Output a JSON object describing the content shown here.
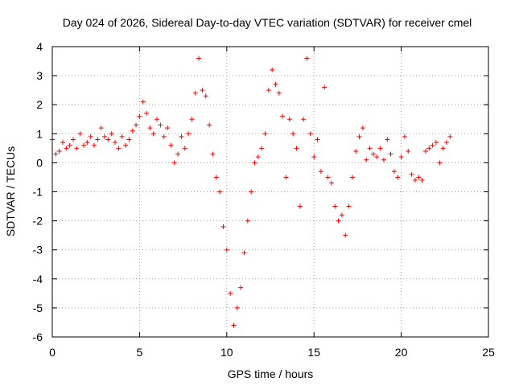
{
  "chart_data": {
    "type": "scatter",
    "title": "Day 024 of 2026, Sidereal Day-to-day VTEC variation (SDTVAR) for receiver cmel",
    "xlabel": "GPS time / hours",
    "ylabel": "SDTVAR / TECUs",
    "xlim": [
      0,
      25
    ],
    "ylim": [
      -6,
      4
    ],
    "xticks": [
      "0",
      "5",
      "10",
      "15",
      "20",
      "25"
    ],
    "yticks": [
      "-6",
      "-5",
      "-4",
      "-3",
      "-2",
      "-1",
      "0",
      "1",
      "2",
      "3",
      "4"
    ],
    "grid": true,
    "marker": "+",
    "color": "#ff0000",
    "series": [
      {
        "name": "SDTVAR",
        "x": [
          0,
          0.2,
          0.4,
          0.6,
          0.8,
          1.0,
          1.2,
          1.4,
          1.6,
          1.8,
          2.0,
          2.2,
          2.4,
          2.6,
          2.8,
          3.0,
          3.2,
          3.4,
          3.6,
          3.8,
          4.0,
          4.2,
          4.4,
          4.6,
          4.8,
          5.0,
          5.2,
          5.4,
          5.6,
          5.8,
          6.0,
          6.2,
          6.4,
          6.6,
          6.8,
          7.0,
          7.2,
          7.4,
          7.6,
          7.8,
          8.0,
          8.2,
          8.4,
          8.6,
          8.8,
          9.0,
          9.2,
          9.4,
          9.6,
          9.8,
          10.0,
          10.2,
          10.4,
          10.6,
          10.8,
          11.0,
          11.2,
          11.4,
          11.6,
          11.8,
          12.0,
          12.2,
          12.4,
          12.6,
          12.8,
          13.0,
          13.2,
          13.4,
          13.6,
          13.8,
          14.0,
          14.2,
          14.4,
          14.6,
          14.8,
          15.0,
          15.2,
          15.4,
          15.6,
          15.8,
          16.0,
          16.2,
          16.4,
          16.6,
          16.8,
          17.0,
          17.2,
          17.4,
          17.6,
          17.8,
          18.0,
          18.2,
          18.4,
          18.6,
          18.8,
          19.0,
          19.2,
          19.4,
          19.6,
          19.8,
          20.0,
          20.2,
          20.4,
          20.6,
          20.8,
          21.0,
          21.2,
          21.4,
          21.6,
          21.8,
          22.0,
          22.2,
          22.4,
          22.6,
          22.8
        ],
        "y": [
          0.8,
          0.3,
          0.4,
          0.7,
          0.5,
          0.6,
          0.8,
          0.5,
          1.0,
          0.6,
          0.7,
          0.9,
          0.6,
          0.8,
          1.2,
          0.9,
          0.8,
          1.0,
          0.7,
          0.5,
          0.9,
          0.6,
          0.8,
          1.1,
          1.3,
          1.6,
          2.1,
          1.7,
          1.2,
          1.0,
          1.5,
          1.3,
          0.9,
          1.2,
          0.6,
          0.0,
          0.3,
          0.9,
          0.5,
          1.0,
          1.5,
          2.4,
          3.6,
          2.5,
          2.3,
          1.3,
          0.3,
          -0.5,
          -1.0,
          -2.2,
          -3.0,
          -4.5,
          -5.6,
          -5.0,
          -4.3,
          -3.1,
          -2.0,
          -1.0,
          0.0,
          0.2,
          0.5,
          1.0,
          2.5,
          3.2,
          2.7,
          2.4,
          1.6,
          -0.5,
          1.5,
          1.0,
          0.5,
          -1.5,
          1.5,
          3.6,
          1.0,
          0.2,
          0.8,
          -0.3,
          2.6,
          -0.5,
          -0.7,
          -1.5,
          -2.0,
          -1.8,
          -2.5,
          -1.5,
          -0.5,
          0.4,
          0.9,
          1.2,
          0.1,
          0.5,
          0.3,
          0.2,
          0.5,
          0.1,
          0.8,
          0.3,
          -0.3,
          -0.5,
          0.2,
          0.9,
          0.4,
          -0.4,
          -0.6,
          -0.5,
          -0.6,
          0.4,
          0.5,
          0.6,
          0.7,
          0.0,
          0.5,
          0.7,
          0.9
        ]
      }
    ]
  }
}
